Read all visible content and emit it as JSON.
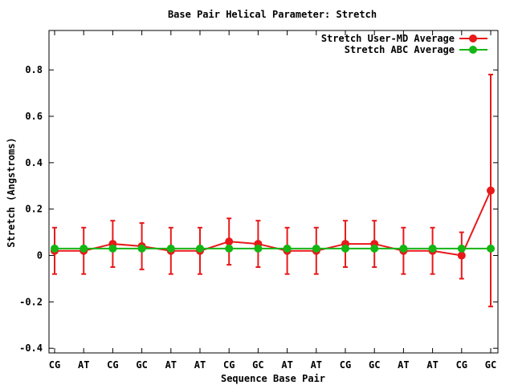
{
  "chart_data": {
    "type": "line",
    "title": "Base Pair Helical Parameter: Stretch",
    "xlabel": "Sequence Base Pair",
    "ylabel": "Stretch (Angstroms)",
    "categories": [
      "CG",
      "AT",
      "CG",
      "GC",
      "AT",
      "AT",
      "CG",
      "GC",
      "AT",
      "AT",
      "CG",
      "GC",
      "AT",
      "AT",
      "CG",
      "GC"
    ],
    "ylim": [
      -0.42,
      0.97
    ],
    "yticks": [
      -0.4,
      -0.2,
      0,
      0.2,
      0.4,
      0.6,
      0.8
    ],
    "ytick_labels": [
      "-0.4",
      "-0.2",
      "0",
      "0.2",
      "0.4",
      "0.6",
      "0.8"
    ],
    "legend_position": "top-right",
    "series": [
      {
        "name": "Stretch User-MD Average",
        "color": "#e8191a",
        "values": [
          0.02,
          0.02,
          0.05,
          0.04,
          0.02,
          0.02,
          0.06,
          0.05,
          0.02,
          0.02,
          0.05,
          0.05,
          0.02,
          0.02,
          0.0,
          0.28
        ],
        "err_low": [
          -0.08,
          -0.08,
          -0.05,
          -0.06,
          -0.08,
          -0.08,
          -0.04,
          -0.05,
          -0.08,
          -0.08,
          -0.05,
          -0.05,
          -0.08,
          -0.08,
          -0.1,
          -0.22
        ],
        "err_high": [
          0.12,
          0.12,
          0.15,
          0.14,
          0.12,
          0.12,
          0.16,
          0.15,
          0.12,
          0.12,
          0.15,
          0.15,
          0.12,
          0.12,
          0.1,
          0.78
        ]
      },
      {
        "name": "Stretch ABC Average",
        "color": "#14b514",
        "values": [
          0.03,
          0.03,
          0.03,
          0.03,
          0.03,
          0.03,
          0.03,
          0.03,
          0.03,
          0.03,
          0.03,
          0.03,
          0.03,
          0.03,
          0.03,
          0.03
        ]
      }
    ]
  }
}
